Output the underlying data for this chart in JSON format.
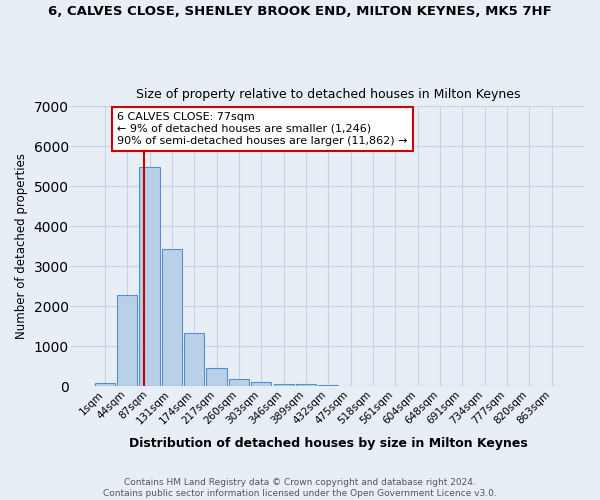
{
  "title": "6, CALVES CLOSE, SHENLEY BROOK END, MILTON KEYNES, MK5 7HF",
  "subtitle": "Size of property relative to detached houses in Milton Keynes",
  "xlabel": "Distribution of detached houses by size in Milton Keynes",
  "ylabel": "Number of detached properties",
  "footnote1": "Contains HM Land Registry data © Crown copyright and database right 2024.",
  "footnote2": "Contains public sector information licensed under the Open Government Licence v3.0.",
  "bar_labels": [
    "1sqm",
    "44sqm",
    "87sqm",
    "131sqm",
    "174sqm",
    "217sqm",
    "260sqm",
    "303sqm",
    "346sqm",
    "389sqm",
    "432sqm",
    "475sqm",
    "518sqm",
    "561sqm",
    "604sqm",
    "648sqm",
    "691sqm",
    "734sqm",
    "777sqm",
    "820sqm",
    "863sqm"
  ],
  "bar_values": [
    75,
    2280,
    5480,
    3440,
    1330,
    460,
    185,
    100,
    65,
    55,
    30,
    0,
    0,
    0,
    0,
    0,
    0,
    0,
    0,
    0,
    0
  ],
  "bar_color": "#b8d0e8",
  "bar_edge_color": "#5590c8",
  "grid_color": "#c8d4e4",
  "bg_color": "#e8eef6",
  "vline_color": "#cc0000",
  "annotation_text": "6 CALVES CLOSE: 77sqm\n← 9% of detached houses are smaller (1,246)\n90% of semi-detached houses are larger (11,862) →",
  "annotation_box_color": "#ffffff",
  "annotation_box_edge": "#cc0000",
  "ylim": [
    0,
    7000
  ],
  "vline_pos": 1.77
}
